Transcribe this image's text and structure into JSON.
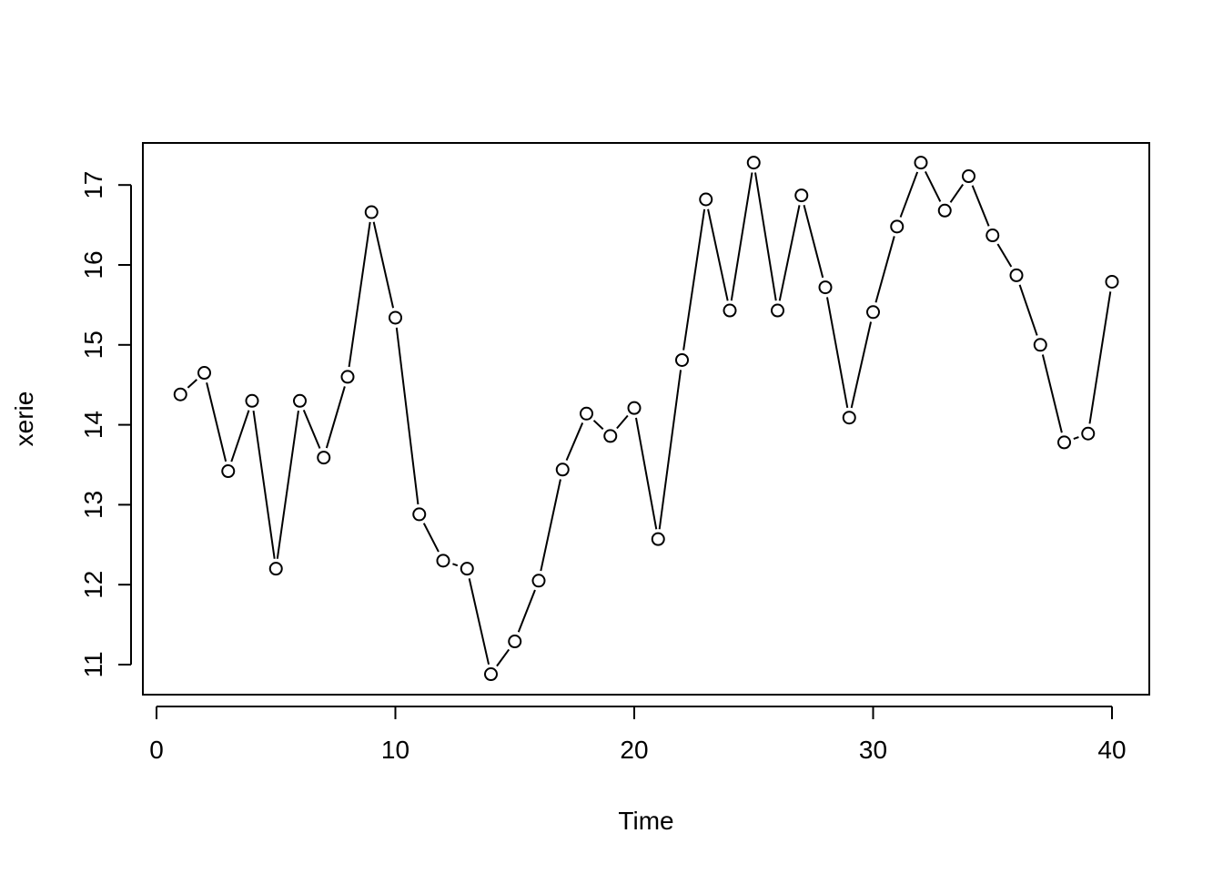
{
  "chart_data": {
    "type": "line",
    "markers": "open-circle",
    "xlabel": "Time",
    "ylabel": "xerie",
    "xlim": [
      0,
      40
    ],
    "ylim": [
      10.9,
      17.3
    ],
    "x_ticks": [
      0,
      10,
      20,
      30,
      40
    ],
    "y_ticks": [
      11,
      12,
      13,
      14,
      15,
      16,
      17
    ],
    "grid": false,
    "series": [
      {
        "x": [
          1,
          2,
          3,
          4,
          5,
          6,
          7,
          8,
          9,
          10,
          11,
          12,
          13,
          14,
          15,
          16,
          17,
          18,
          19,
          20,
          21,
          22,
          23,
          24,
          25,
          26,
          27,
          28,
          29,
          30,
          31,
          32,
          33,
          34,
          35,
          36,
          37,
          38,
          39,
          40
        ],
        "values": [
          14.38,
          14.65,
          13.42,
          14.3,
          12.2,
          14.3,
          13.59,
          14.6,
          16.66,
          15.34,
          12.88,
          12.3,
          12.2,
          10.88,
          11.29,
          12.05,
          13.44,
          14.14,
          13.86,
          14.21,
          12.57,
          14.81,
          16.82,
          15.43,
          17.28,
          15.43,
          16.87,
          15.72,
          14.09,
          15.41,
          16.48,
          17.28,
          16.68,
          17.11,
          16.37,
          15.87,
          15.0,
          13.78,
          13.89,
          15.79
        ]
      }
    ]
  }
}
